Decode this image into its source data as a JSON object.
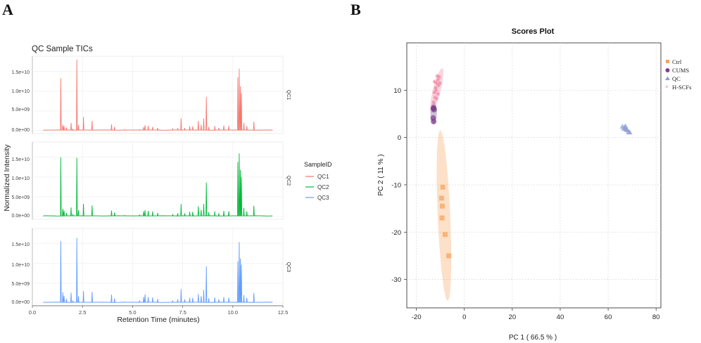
{
  "panels": {
    "a": "A",
    "b": "B"
  },
  "chart_data": [
    {
      "type": "line",
      "title": "QC Sample TICs",
      "xlabel": "Retention Time (minutes)",
      "ylabel": "Normalized Intensity",
      "xlim": [
        0,
        12.5
      ],
      "x_ticks": [
        "0.0",
        "2.5",
        "5.0",
        "7.5",
        "10.0",
        "12.5"
      ],
      "y_ticks": [
        "0.0e+00",
        "5.0e+09",
        "1.0e+10",
        "1.5e+10"
      ],
      "ylim": [
        0,
        18500000000.0
      ],
      "legend": {
        "title": "SampleID",
        "position": "right"
      },
      "series": [
        {
          "name": "QC1",
          "facet_label": "QC1",
          "color": "#f8766d",
          "peaks": [
            [
              1.42,
              13300000000.0
            ],
            [
              1.52,
              1500000000.0
            ],
            [
              1.58,
              1200000000.0
            ],
            [
              1.7,
              800000000.0
            ],
            [
              1.93,
              2000000000.0
            ],
            [
              2.02,
              400000000.0
            ],
            [
              2.22,
              18000000000.0
            ],
            [
              2.3,
              1400000000.0
            ],
            [
              2.55,
              3500000000.0
            ],
            [
              2.98,
              2500000000.0
            ],
            [
              3.95,
              1600000000.0
            ],
            [
              4.1,
              1000000000.0
            ],
            [
              4.6,
              300000000.0
            ],
            [
              5.35,
              300000000.0
            ],
            [
              5.55,
              900000000.0
            ],
            [
              5.62,
              1400000000.0
            ],
            [
              5.78,
              1200000000.0
            ],
            [
              6.0,
              1000000000.0
            ],
            [
              6.25,
              700000000.0
            ],
            [
              7.0,
              500000000.0
            ],
            [
              7.25,
              700000000.0
            ],
            [
              7.42,
              3200000000.0
            ],
            [
              7.6,
              700000000.0
            ],
            [
              7.85,
              1100000000.0
            ],
            [
              8.0,
              1100000000.0
            ],
            [
              8.28,
              2500000000.0
            ],
            [
              8.42,
              1500000000.0
            ],
            [
              8.55,
              3100000000.0
            ],
            [
              8.68,
              8600000000.0
            ],
            [
              8.8,
              1000000000.0
            ],
            [
              9.1,
              1200000000.0
            ],
            [
              9.3,
              700000000.0
            ],
            [
              9.55,
              1300000000.0
            ],
            [
              9.8,
              1200000000.0
            ],
            [
              10.25,
              13500000000.0
            ],
            [
              10.32,
              15700000000.0
            ],
            [
              10.38,
              11200000000.0
            ],
            [
              10.43,
              9500000000.0
            ],
            [
              10.55,
              2000000000.0
            ],
            [
              10.7,
              1200000000.0
            ],
            [
              11.05,
              2300000000.0
            ]
          ]
        },
        {
          "name": "QC2",
          "facet_label": "QC2",
          "color": "#00ba38",
          "peaks": [
            [
              1.42,
              15000000000.0
            ],
            [
              1.52,
              2000000000.0
            ],
            [
              1.58,
              1500000000.0
            ],
            [
              1.7,
              900000000.0
            ],
            [
              1.93,
              2300000000.0
            ],
            [
              2.02,
              500000000.0
            ],
            [
              2.22,
              14900000000.0
            ],
            [
              2.3,
              1600000000.0
            ],
            [
              2.55,
              3200000000.0
            ],
            [
              2.98,
              2800000000.0
            ],
            [
              3.95,
              1500000000.0
            ],
            [
              4.1,
              1000000000.0
            ],
            [
              4.6,
              300000000.0
            ],
            [
              5.35,
              400000000.0
            ],
            [
              5.55,
              1300000000.0
            ],
            [
              5.62,
              1600000000.0
            ],
            [
              5.78,
              1400000000.0
            ],
            [
              6.0,
              1300000000.0
            ],
            [
              6.25,
              900000000.0
            ],
            [
              7.0,
              500000000.0
            ],
            [
              7.25,
              800000000.0
            ],
            [
              7.42,
              3200000000.0
            ],
            [
              7.6,
              800000000.0
            ],
            [
              7.85,
              1200000000.0
            ],
            [
              8.0,
              1200000000.0
            ],
            [
              8.28,
              2600000000.0
            ],
            [
              8.42,
              1700000000.0
            ],
            [
              8.55,
              3200000000.0
            ],
            [
              8.68,
              8600000000.0
            ],
            [
              8.8,
              1100000000.0
            ],
            [
              9.1,
              1300000000.0
            ],
            [
              9.3,
              800000000.0
            ],
            [
              9.55,
              1400000000.0
            ],
            [
              9.8,
              1300000000.0
            ],
            [
              10.25,
              13800000000.0
            ],
            [
              10.32,
              16000000000.0
            ],
            [
              10.38,
              11800000000.0
            ],
            [
              10.43,
              10000000000.0
            ],
            [
              10.55,
              2200000000.0
            ],
            [
              10.7,
              1300000000.0
            ],
            [
              11.05,
              2700000000.0
            ]
          ]
        },
        {
          "name": "QC3",
          "facet_label": "QC3",
          "color": "#619cff",
          "peaks": [
            [
              1.42,
              15700000000.0
            ],
            [
              1.52,
              2700000000.0
            ],
            [
              1.58,
              1800000000.0
            ],
            [
              1.7,
              1000000000.0
            ],
            [
              1.93,
              2600000000.0
            ],
            [
              2.02,
              500000000.0
            ],
            [
              2.22,
              16500000000.0
            ],
            [
              2.3,
              1700000000.0
            ],
            [
              2.55,
              3000000000.0
            ],
            [
              2.98,
              2800000000.0
            ],
            [
              3.95,
              2100000000.0
            ],
            [
              4.1,
              1100000000.0
            ],
            [
              4.6,
              300000000.0
            ],
            [
              5.35,
              500000000.0
            ],
            [
              5.55,
              1500000000.0
            ],
            [
              5.62,
              2200000000.0
            ],
            [
              5.78,
              1500000000.0
            ],
            [
              6.0,
              1400000000.0
            ],
            [
              6.25,
              1000000000.0
            ],
            [
              7.0,
              500000000.0
            ],
            [
              7.25,
              900000000.0
            ],
            [
              7.42,
              3500000000.0
            ],
            [
              7.6,
              900000000.0
            ],
            [
              7.85,
              1300000000.0
            ],
            [
              8.0,
              1300000000.0
            ],
            [
              8.28,
              2300000000.0
            ],
            [
              8.42,
              1700000000.0
            ],
            [
              8.55,
              3300000000.0
            ],
            [
              8.68,
              9300000000.0
            ],
            [
              8.8,
              1200000000.0
            ],
            [
              9.1,
              1400000000.0
            ],
            [
              9.3,
              900000000.0
            ],
            [
              9.55,
              1500000000.0
            ],
            [
              9.8,
              1300000000.0
            ],
            [
              10.25,
              10500000000.0
            ],
            [
              10.32,
              15400000000.0
            ],
            [
              10.38,
              11200000000.0
            ],
            [
              10.43,
              9700000000.0
            ],
            [
              10.55,
              2000000000.0
            ],
            [
              10.7,
              1300000000.0
            ],
            [
              11.05,
              2500000000.0
            ]
          ]
        }
      ]
    },
    {
      "type": "scatter",
      "title": "Scores Plot",
      "xlabel": "PC 1 ( 66.5 % )",
      "ylabel": "PC 2 ( 11 % )",
      "xlim": [
        -24,
        82
      ],
      "ylim": [
        -36,
        20
      ],
      "x_ticks": [
        -20,
        0,
        20,
        40,
        60,
        80
      ],
      "y_ticks": [
        10,
        0,
        -10,
        -20,
        -30
      ],
      "grid": true,
      "legend": {
        "position": "right"
      },
      "series": [
        {
          "name": "Ctrl",
          "color": "#f6a560",
          "marker": "square",
          "points": [
            [
              -9,
              -10.5
            ],
            [
              -9.5,
              -12.8
            ],
            [
              -9.2,
              -14.5
            ],
            [
              -9.3,
              -17
            ],
            [
              -8,
              -20.5
            ],
            [
              -6.5,
              -25
            ]
          ],
          "ellipse": {
            "cx": -8.5,
            "cy": -16.5,
            "rx": 2.6,
            "ry": 18,
            "angle_deg": -2.5
          }
        },
        {
          "name": "CUMS",
          "color": "#7b3f8c",
          "marker": "circle",
          "points": [
            [
              -12.8,
              6.3
            ],
            [
              -12.6,
              5.9
            ],
            [
              -12.9,
              6.1
            ],
            [
              -13,
              4.1
            ],
            [
              -12.8,
              3.4
            ]
          ],
          "ellipse": {
            "cx": -12.8,
            "cy": 5.2,
            "rx": 1.3,
            "ry": 2.4,
            "angle_deg": 0
          }
        },
        {
          "name": "QC",
          "color": "#8f9fd3",
          "marker": "triangle",
          "points": [
            [
              66,
              2.3
            ],
            [
              67,
              2.1
            ],
            [
              67.5,
              1.7
            ],
            [
              68,
              1.6
            ],
            [
              68.5,
              1.2
            ],
            [
              69,
              1.1
            ],
            [
              67.2,
              2.4
            ],
            [
              66.6,
              1.9
            ]
          ],
          "ellipse": null
        },
        {
          "name": "H-SCFs",
          "color": "#f08aa6",
          "marker": "asterisk",
          "points": [
            [
              -11.5,
              11.5
            ],
            [
              -11,
              12.2
            ],
            [
              -12,
              10.5
            ],
            [
              -10.8,
              11
            ],
            [
              -12.5,
              9.5
            ],
            [
              -11.3,
              13
            ],
            [
              -12.2,
              8.5
            ],
            [
              -10.5,
              12.8
            ],
            [
              -12.8,
              7.5
            ],
            [
              -11.8,
              10
            ],
            [
              -11,
              9.2
            ],
            [
              -12.4,
              11.8
            ],
            [
              -10.2,
              11.5
            ],
            [
              -11.6,
              8.2
            ]
          ],
          "ellipse": {
            "cx": -11.5,
            "cy": 10.0,
            "rx": 1.6,
            "ry": 4.8,
            "angle_deg": 14
          }
        }
      ]
    }
  ]
}
